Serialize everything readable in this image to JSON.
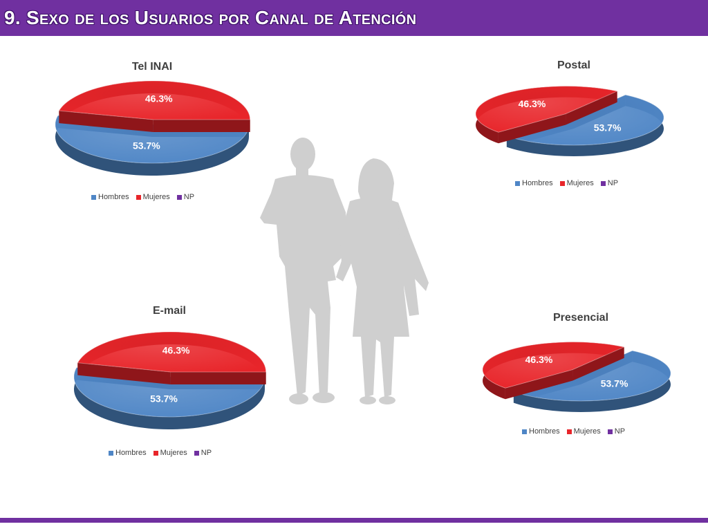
{
  "slide": {
    "title": "9. Sexo de los Usuarios por Canal de Atención"
  },
  "colors": {
    "accent": "#7030a0",
    "hombres": "#4f86c6",
    "mujeres": "#e8252a",
    "np": "#7030a0",
    "silhouette": "#cfcfcf"
  },
  "chart_data": [
    {
      "type": "pie",
      "title": "Tel INAI",
      "categories": [
        "Hombres",
        "Mujeres",
        "NP"
      ],
      "values": [
        53.7,
        46.3,
        0
      ],
      "labels": [
        "53.7%",
        "46.3%",
        ""
      ],
      "legend": "bottom"
    },
    {
      "type": "pie",
      "title": "Postal",
      "categories": [
        "Hombres",
        "Mujeres",
        "NP"
      ],
      "values": [
        53.7,
        46.3,
        0
      ],
      "labels": [
        "53.7%",
        "46.3%",
        ""
      ],
      "legend": "bottom"
    },
    {
      "type": "pie",
      "title": "E-mail",
      "categories": [
        "Hombres",
        "Mujeres",
        "NP"
      ],
      "values": [
        53.7,
        46.3,
        0
      ],
      "labels": [
        "53.7%",
        "46.3%",
        ""
      ],
      "legend": "bottom"
    },
    {
      "type": "pie",
      "title": "Presencial",
      "categories": [
        "Hombres",
        "Mujeres",
        "NP"
      ],
      "values": [
        53.7,
        46.3,
        0
      ],
      "labels": [
        "53.7%",
        "46.3%",
        ""
      ],
      "legend": "bottom"
    }
  ]
}
